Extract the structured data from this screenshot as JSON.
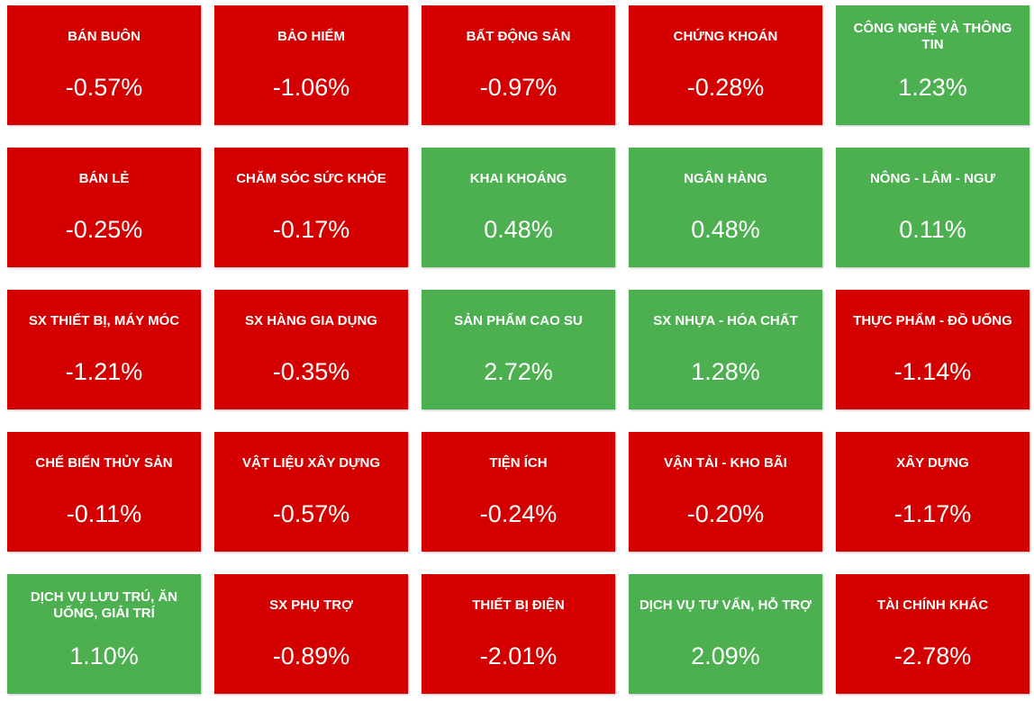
{
  "tiles": [
    {
      "label": "BÁN BUÔN",
      "value": "-0.57%",
      "color": "#d40000"
    },
    {
      "label": "BẢO HIỂM",
      "value": "-1.06%",
      "color": "#d40000"
    },
    {
      "label": "BẤT ĐỘNG SẢN",
      "value": "-0.97%",
      "color": "#d40000"
    },
    {
      "label": "CHỨNG KHOÁN",
      "value": "-0.28%",
      "color": "#d40000"
    },
    {
      "label": "CÔNG NGHỆ VÀ THÔNG TIN",
      "value": "1.23%",
      "color": "#4caf50"
    },
    {
      "label": "BÁN LẺ",
      "value": "-0.25%",
      "color": "#d40000"
    },
    {
      "label": "CHĂM SÓC SỨC KHỎE",
      "value": "-0.17%",
      "color": "#d40000"
    },
    {
      "label": "KHAI KHOÁNG",
      "value": "0.48%",
      "color": "#4caf50"
    },
    {
      "label": "NGÂN HÀNG",
      "value": "0.48%",
      "color": "#4caf50"
    },
    {
      "label": "NÔNG - LÂM - NGƯ",
      "value": "0.11%",
      "color": "#4caf50"
    },
    {
      "label": "SX THIẾT BỊ, MÁY MÓC",
      "value": "-1.21%",
      "color": "#d40000"
    },
    {
      "label": "SX HÀNG GIA DỤNG",
      "value": "-0.35%",
      "color": "#d40000"
    },
    {
      "label": "SẢN PHẨM CAO SU",
      "value": "2.72%",
      "color": "#4caf50"
    },
    {
      "label": "SX NHỰA - HÓA CHẤT",
      "value": "1.28%",
      "color": "#4caf50"
    },
    {
      "label": "THỰC PHẨM - ĐỒ UỐNG",
      "value": "-1.14%",
      "color": "#d40000"
    },
    {
      "label": "CHẾ BIẾN THỦY SẢN",
      "value": "-0.11%",
      "color": "#d40000"
    },
    {
      "label": "VẬT LIỆU XÂY DỰNG",
      "value": "-0.57%",
      "color": "#d40000"
    },
    {
      "label": "TIỆN ÍCH",
      "value": "-0.24%",
      "color": "#d40000"
    },
    {
      "label": "VẬN TẢI - KHO BÃI",
      "value": "-0.20%",
      "color": "#d40000"
    },
    {
      "label": "XÂY DỰNG",
      "value": "-1.17%",
      "color": "#d40000"
    },
    {
      "label": "DỊCH VỤ LƯU TRÚ, ĂN UỐNG, GIẢI TRÍ",
      "value": "1.10%",
      "color": "#4caf50"
    },
    {
      "label": "SX PHỤ TRỢ",
      "value": "-0.89%",
      "color": "#d40000"
    },
    {
      "label": "THIẾT BỊ ĐIỆN",
      "value": "-2.01%",
      "color": "#d40000"
    },
    {
      "label": "DỊCH VỤ TƯ VẤN, HỖ TRỢ",
      "value": "2.09%",
      "color": "#4caf50"
    },
    {
      "label": "TÀI CHÍNH KHÁC",
      "value": "-2.78%",
      "color": "#d40000"
    }
  ]
}
